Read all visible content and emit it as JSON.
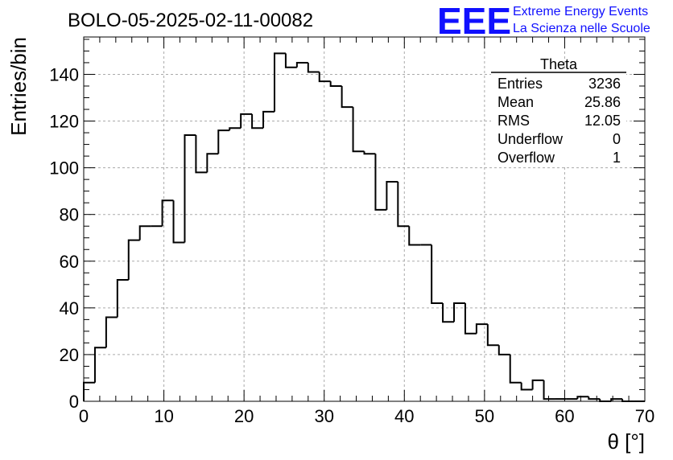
{
  "chart_data": {
    "type": "bar",
    "title": "BOLO-05-2025-02-11-00082",
    "xlabel": "θ [°]",
    "ylabel": "Entries/bin",
    "xlim": [
      0,
      70
    ],
    "ylim": [
      0,
      156
    ],
    "x_ticks": [
      0,
      10,
      20,
      30,
      40,
      50,
      60,
      70
    ],
    "y_ticks": [
      0,
      20,
      40,
      60,
      80,
      100,
      120,
      140
    ],
    "grid": true,
    "bin_edges": [
      0,
      1.4,
      2.8,
      4.2,
      5.6,
      7.0,
      8.4,
      9.8,
      11.2,
      12.6,
      14.0,
      15.4,
      16.8,
      18.2,
      19.6,
      21.0,
      22.4,
      23.8,
      25.2,
      26.6,
      28.0,
      29.4,
      30.8,
      32.2,
      33.6,
      35.0,
      36.4,
      37.8,
      39.2,
      40.6,
      42.0,
      43.4,
      44.8,
      46.2,
      47.6,
      49.0,
      50.4,
      51.8,
      53.2,
      54.6,
      56.0,
      57.4,
      58.8,
      60.2,
      61.6,
      63.0,
      64.4,
      65.8,
      67.2,
      68.6,
      70.0
    ],
    "values": [
      8,
      23,
      36,
      52,
      69,
      75,
      75,
      86,
      68,
      114,
      98,
      106,
      116,
      117,
      123,
      117,
      124,
      149,
      143,
      145,
      141,
      137,
      135,
      126,
      107,
      106,
      82,
      94,
      75,
      67,
      67,
      42,
      34,
      42,
      29,
      33,
      24,
      20,
      8,
      5,
      9,
      1,
      1,
      1,
      2,
      1,
      0,
      1,
      0,
      0
    ],
    "stats": {
      "name": "Theta",
      "rows": [
        {
          "label": "Entries",
          "value": "3236"
        },
        {
          "label": "Mean",
          "value": "25.86"
        },
        {
          "label": "RMS",
          "value": "12.05"
        },
        {
          "label": "Underflow",
          "value": "0"
        },
        {
          "label": "Overflow",
          "value": "1"
        }
      ]
    }
  },
  "logo": {
    "mark": "EEE",
    "line1": "Extreme Energy Events",
    "line2": "La Scienza nelle Scuole",
    "color": "#1010ff"
  }
}
